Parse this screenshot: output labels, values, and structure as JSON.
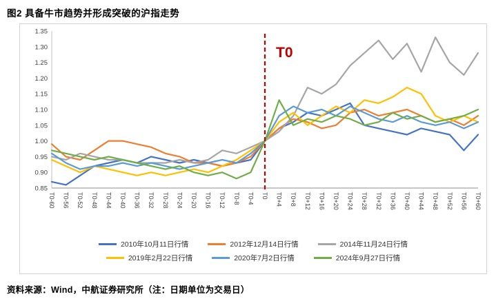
{
  "title": "图2 具备牛市趋势并形成突破的沪指走势",
  "source_note": "资料来源：Wind，中航证券研究所（注：日期单位为交易日）",
  "chart_data": {
    "type": "line",
    "title": "具备牛市趋势并形成突破的沪指走势",
    "xlabel": "",
    "ylabel": "",
    "ylim": [
      0.85,
      1.35
    ],
    "grid": false,
    "legend_position": "bottom",
    "annotation": "T0",
    "annotation_color": "#C00000",
    "vline_at": "T0",
    "vline_color": "#C00000",
    "y_ticks": [
      "0.85",
      "0.90",
      "0.95",
      "1.00",
      "1.05",
      "1.10",
      "1.15",
      "1.20",
      "1.25",
      "1.30",
      "1.35"
    ],
    "x_tick_labels": [
      "T0-60",
      "T0-56",
      "T0-52",
      "T0-48",
      "T0-44",
      "T0-40",
      "T0-36",
      "T0-32",
      "T0-28",
      "T0-24",
      "T0-20",
      "T0-16",
      "T0-12",
      "T0-8",
      "T0-4",
      "T0",
      "T0+4",
      "T0+8",
      "T0+12",
      "T0+16",
      "T0+20",
      "T0+24",
      "T0+28",
      "T0+32",
      "T0+36",
      "T0+40",
      "T0+44",
      "T0+48",
      "T0+52",
      "T0+56",
      "T0+60"
    ],
    "series": [
      {
        "name": "2010年10月11日行情",
        "color": "#4472C4",
        "values": [
          0.87,
          0.86,
          0.89,
          0.92,
          0.93,
          0.94,
          0.93,
          0.95,
          0.94,
          0.93,
          0.94,
          0.93,
          0.92,
          0.93,
          0.94,
          1.0,
          1.04,
          1.06,
          1.09,
          1.08,
          1.1,
          1.12,
          1.05,
          1.04,
          1.03,
          1.02,
          1.04,
          1.03,
          1.02,
          0.97,
          1.02
        ]
      },
      {
        "name": "2012年12月14日行情",
        "color": "#ED7D31",
        "values": [
          0.99,
          0.95,
          0.94,
          0.97,
          1.0,
          1.0,
          0.99,
          0.98,
          0.96,
          0.95,
          0.93,
          0.93,
          0.92,
          0.93,
          0.95,
          1.0,
          1.04,
          1.07,
          1.06,
          1.04,
          1.05,
          1.09,
          1.1,
          1.08,
          1.09,
          1.1,
          1.08,
          1.06,
          1.07,
          1.05,
          1.08
        ]
      },
      {
        "name": "2014年11月24日行情",
        "color": "#A5A5A5",
        "values": [
          0.95,
          0.94,
          0.96,
          0.95,
          0.94,
          0.94,
          0.93,
          0.93,
          0.93,
          0.94,
          0.93,
          0.94,
          0.97,
          0.96,
          0.98,
          1.0,
          1.03,
          1.08,
          1.17,
          1.15,
          1.18,
          1.24,
          1.28,
          1.32,
          1.26,
          1.31,
          1.22,
          1.33,
          1.25,
          1.21,
          1.28
        ]
      },
      {
        "name": "2019年2月22日行情",
        "color": "#FFC000",
        "values": [
          0.94,
          0.92,
          0.9,
          0.92,
          0.91,
          0.9,
          0.89,
          0.9,
          0.89,
          0.9,
          0.91,
          0.9,
          0.92,
          0.94,
          0.97,
          1.0,
          1.06,
          1.09,
          1.05,
          1.08,
          1.11,
          1.09,
          1.13,
          1.12,
          1.14,
          1.17,
          1.15,
          1.08,
          1.06,
          1.08,
          1.06
        ]
      },
      {
        "name": "2020年7月2日行情",
        "color": "#5B9BD5",
        "values": [
          0.96,
          0.93,
          0.91,
          0.92,
          0.92,
          0.93,
          0.92,
          0.93,
          0.92,
          0.91,
          0.92,
          0.93,
          0.94,
          0.93,
          0.96,
          1.0,
          1.08,
          1.11,
          1.09,
          1.1,
          1.08,
          1.11,
          1.09,
          1.07,
          1.06,
          1.08,
          1.06,
          1.05,
          1.06,
          1.04,
          1.06
        ]
      },
      {
        "name": "2024年9月27日行情",
        "color": "#70AD47",
        "values": [
          0.97,
          0.96,
          0.95,
          0.94,
          0.95,
          0.94,
          0.93,
          0.92,
          0.91,
          0.92,
          0.9,
          0.89,
          0.9,
          0.88,
          0.9,
          1.0,
          1.13,
          1.05,
          1.07,
          1.06,
          1.08,
          1.07,
          1.05,
          1.06,
          1.09,
          1.07,
          1.08,
          1.06,
          1.07,
          1.08,
          1.1
        ]
      }
    ]
  }
}
